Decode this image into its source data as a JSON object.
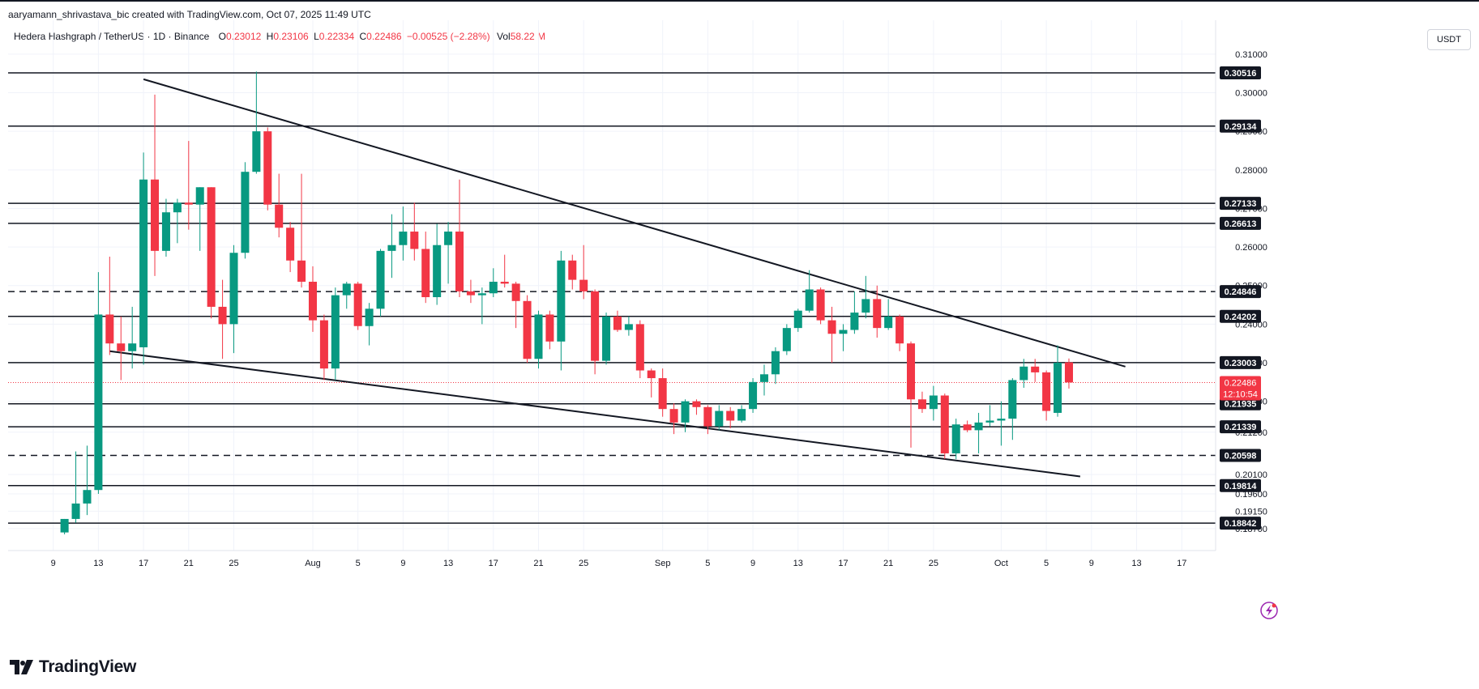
{
  "header": {
    "credit": "aaryamann_shrivastava_bic created with TradingView.com, Oct 07, 2025 11:49 UTC",
    "symbol": "Hedera Hashgraph / TetherUS · 1D · Binance",
    "o_label": "O",
    "o_value": "0.23012",
    "h_label": "H",
    "h_value": "0.23106",
    "l_label": "L",
    "l_value": "0.22334",
    "c_label": "C",
    "c_value": "0.22486",
    "change": "−0.00525 (−2.28%)",
    "vol_label": "Vol",
    "vol_value": "58.22 M"
  },
  "currency": "USDT",
  "brand": "TradingView",
  "colors": {
    "up": "#089981",
    "down": "#f23645",
    "line": "#131722",
    "grid": "#f0f3fa",
    "label_bg": "#131722",
    "price_line": "#f23645",
    "badge_bg": "#f23645"
  },
  "icons": {
    "logo": "tradingview-logo-icon",
    "alert": "lightning-bolt-icon"
  },
  "chart_data": {
    "type": "candlestick",
    "x_ticks": [
      {
        "date": "2025-07-09",
        "label": "9"
      },
      {
        "date": "2025-07-13",
        "label": "13"
      },
      {
        "date": "2025-07-17",
        "label": "17"
      },
      {
        "date": "2025-07-21",
        "label": "21"
      },
      {
        "date": "2025-07-25",
        "label": "25"
      },
      {
        "date": "2025-08-01",
        "label": "Aug"
      },
      {
        "date": "2025-08-05",
        "label": "5"
      },
      {
        "date": "2025-08-09",
        "label": "9"
      },
      {
        "date": "2025-08-13",
        "label": "13"
      },
      {
        "date": "2025-08-17",
        "label": "17"
      },
      {
        "date": "2025-08-21",
        "label": "21"
      },
      {
        "date": "2025-08-25",
        "label": "25"
      },
      {
        "date": "2025-09-01",
        "label": "Sep"
      },
      {
        "date": "2025-09-05",
        "label": "5"
      },
      {
        "date": "2025-09-09",
        "label": "9"
      },
      {
        "date": "2025-09-13",
        "label": "13"
      },
      {
        "date": "2025-09-17",
        "label": "17"
      },
      {
        "date": "2025-09-21",
        "label": "21"
      },
      {
        "date": "2025-09-25",
        "label": "25"
      },
      {
        "date": "2025-10-01",
        "label": "Oct"
      },
      {
        "date": "2025-10-05",
        "label": "5"
      },
      {
        "date": "2025-10-09",
        "label": "9"
      },
      {
        "date": "2025-10-13",
        "label": "13"
      },
      {
        "date": "2025-10-17",
        "label": "17"
      }
    ],
    "x_range": [
      "2025-07-05",
      "2025-10-20"
    ],
    "y_range": [
      0.1855,
      0.3125
    ],
    "y_ticks": [
      "0.31000",
      "0.30000",
      "0.29000",
      "0.28000",
      "0.27000",
      "0.26000",
      "0.25000",
      "0.24000",
      "0.23000",
      "0.22000",
      "0.21200",
      "0.20100",
      "0.19600",
      "0.19150",
      "0.18700"
    ],
    "candles": [
      {
        "date": "2025-07-10",
        "o": 0.186,
        "h": 0.1895,
        "l": 0.1855,
        "c": 0.1895
      },
      {
        "date": "2025-07-11",
        "o": 0.1895,
        "h": 0.207,
        "l": 0.1885,
        "c": 0.1935
      },
      {
        "date": "2025-07-12",
        "o": 0.1935,
        "h": 0.2085,
        "l": 0.1905,
        "c": 0.197
      },
      {
        "date": "2025-07-13",
        "o": 0.197,
        "h": 0.2535,
        "l": 0.196,
        "c": 0.2425
      },
      {
        "date": "2025-07-14",
        "o": 0.2425,
        "h": 0.2575,
        "l": 0.232,
        "c": 0.235
      },
      {
        "date": "2025-07-15",
        "o": 0.235,
        "h": 0.242,
        "l": 0.2255,
        "c": 0.233
      },
      {
        "date": "2025-07-16",
        "o": 0.233,
        "h": 0.2445,
        "l": 0.2285,
        "c": 0.235
      },
      {
        "date": "2025-07-17",
        "o": 0.234,
        "h": 0.2845,
        "l": 0.2295,
        "c": 0.2775
      },
      {
        "date": "2025-07-18",
        "o": 0.2775,
        "h": 0.2995,
        "l": 0.2525,
        "c": 0.259
      },
      {
        "date": "2025-07-19",
        "o": 0.259,
        "h": 0.2725,
        "l": 0.2575,
        "c": 0.269
      },
      {
        "date": "2025-07-20",
        "o": 0.269,
        "h": 0.2725,
        "l": 0.261,
        "c": 0.2715
      },
      {
        "date": "2025-07-21",
        "o": 0.2715,
        "h": 0.2875,
        "l": 0.2645,
        "c": 0.271
      },
      {
        "date": "2025-07-22",
        "o": 0.271,
        "h": 0.2755,
        "l": 0.259,
        "c": 0.2755
      },
      {
        "date": "2025-07-23",
        "o": 0.2755,
        "h": 0.2755,
        "l": 0.2415,
        "c": 0.2445
      },
      {
        "date": "2025-07-24",
        "o": 0.2445,
        "h": 0.2515,
        "l": 0.231,
        "c": 0.24
      },
      {
        "date": "2025-07-25",
        "o": 0.24,
        "h": 0.2605,
        "l": 0.2325,
        "c": 0.2585
      },
      {
        "date": "2025-07-26",
        "o": 0.2585,
        "h": 0.282,
        "l": 0.257,
        "c": 0.2795
      },
      {
        "date": "2025-07-27",
        "o": 0.2795,
        "h": 0.3055,
        "l": 0.279,
        "c": 0.29
      },
      {
        "date": "2025-07-28",
        "o": 0.29,
        "h": 0.291,
        "l": 0.2695,
        "c": 0.271
      },
      {
        "date": "2025-07-29",
        "o": 0.271,
        "h": 0.279,
        "l": 0.2625,
        "c": 0.265
      },
      {
        "date": "2025-07-30",
        "o": 0.265,
        "h": 0.2665,
        "l": 0.2535,
        "c": 0.2565
      },
      {
        "date": "2025-07-31",
        "o": 0.2565,
        "h": 0.279,
        "l": 0.2495,
        "c": 0.251
      },
      {
        "date": "2025-08-01",
        "o": 0.251,
        "h": 0.255,
        "l": 0.238,
        "c": 0.241
      },
      {
        "date": "2025-08-02",
        "o": 0.241,
        "h": 0.2425,
        "l": 0.2255,
        "c": 0.2285
      },
      {
        "date": "2025-08-03",
        "o": 0.2285,
        "h": 0.2495,
        "l": 0.2255,
        "c": 0.2475
      },
      {
        "date": "2025-08-04",
        "o": 0.2475,
        "h": 0.251,
        "l": 0.244,
        "c": 0.2505
      },
      {
        "date": "2025-08-05",
        "o": 0.2505,
        "h": 0.251,
        "l": 0.2385,
        "c": 0.2395
      },
      {
        "date": "2025-08-06",
        "o": 0.2395,
        "h": 0.2455,
        "l": 0.2345,
        "c": 0.244
      },
      {
        "date": "2025-08-07",
        "o": 0.244,
        "h": 0.2595,
        "l": 0.242,
        "c": 0.259
      },
      {
        "date": "2025-08-08",
        "o": 0.259,
        "h": 0.2685,
        "l": 0.252,
        "c": 0.2605
      },
      {
        "date": "2025-08-09",
        "o": 0.2605,
        "h": 0.2705,
        "l": 0.2565,
        "c": 0.264
      },
      {
        "date": "2025-08-10",
        "o": 0.264,
        "h": 0.2715,
        "l": 0.2565,
        "c": 0.2595
      },
      {
        "date": "2025-08-11",
        "o": 0.2595,
        "h": 0.264,
        "l": 0.2455,
        "c": 0.247
      },
      {
        "date": "2025-08-12",
        "o": 0.247,
        "h": 0.266,
        "l": 0.245,
        "c": 0.2605
      },
      {
        "date": "2025-08-13",
        "o": 0.2605,
        "h": 0.2665,
        "l": 0.2505,
        "c": 0.264
      },
      {
        "date": "2025-08-14",
        "o": 0.264,
        "h": 0.2775,
        "l": 0.247,
        "c": 0.2485
      },
      {
        "date": "2025-08-15",
        "o": 0.2485,
        "h": 0.2515,
        "l": 0.2455,
        "c": 0.2475
      },
      {
        "date": "2025-08-16",
        "o": 0.2475,
        "h": 0.2495,
        "l": 0.24,
        "c": 0.248
      },
      {
        "date": "2025-08-17",
        "o": 0.248,
        "h": 0.2545,
        "l": 0.247,
        "c": 0.251
      },
      {
        "date": "2025-08-18",
        "o": 0.251,
        "h": 0.258,
        "l": 0.2495,
        "c": 0.2505
      },
      {
        "date": "2025-08-19",
        "o": 0.2505,
        "h": 0.251,
        "l": 0.239,
        "c": 0.246
      },
      {
        "date": "2025-08-20",
        "o": 0.246,
        "h": 0.2475,
        "l": 0.23,
        "c": 0.231
      },
      {
        "date": "2025-08-21",
        "o": 0.231,
        "h": 0.2435,
        "l": 0.2285,
        "c": 0.2425
      },
      {
        "date": "2025-08-22",
        "o": 0.2425,
        "h": 0.2435,
        "l": 0.2335,
        "c": 0.2355
      },
      {
        "date": "2025-08-23",
        "o": 0.2355,
        "h": 0.259,
        "l": 0.228,
        "c": 0.2565
      },
      {
        "date": "2025-08-24",
        "o": 0.2565,
        "h": 0.258,
        "l": 0.249,
        "c": 0.2515
      },
      {
        "date": "2025-08-25",
        "o": 0.2515,
        "h": 0.2605,
        "l": 0.2465,
        "c": 0.2485
      },
      {
        "date": "2025-08-26",
        "o": 0.2485,
        "h": 0.249,
        "l": 0.227,
        "c": 0.2305
      },
      {
        "date": "2025-08-27",
        "o": 0.2305,
        "h": 0.243,
        "l": 0.2295,
        "c": 0.242
      },
      {
        "date": "2025-08-28",
        "o": 0.242,
        "h": 0.2435,
        "l": 0.238,
        "c": 0.2385
      },
      {
        "date": "2025-08-29",
        "o": 0.2385,
        "h": 0.242,
        "l": 0.237,
        "c": 0.24
      },
      {
        "date": "2025-08-30",
        "o": 0.24,
        "h": 0.241,
        "l": 0.226,
        "c": 0.228
      },
      {
        "date": "2025-08-31",
        "o": 0.228,
        "h": 0.2285,
        "l": 0.221,
        "c": 0.226
      },
      {
        "date": "2025-09-01",
        "o": 0.226,
        "h": 0.2285,
        "l": 0.216,
        "c": 0.218
      },
      {
        "date": "2025-09-02",
        "o": 0.218,
        "h": 0.2195,
        "l": 0.2115,
        "c": 0.2145
      },
      {
        "date": "2025-09-03",
        "o": 0.2145,
        "h": 0.2205,
        "l": 0.212,
        "c": 0.22
      },
      {
        "date": "2025-09-04",
        "o": 0.22,
        "h": 0.2205,
        "l": 0.2165,
        "c": 0.2185
      },
      {
        "date": "2025-09-05",
        "o": 0.2185,
        "h": 0.219,
        "l": 0.2115,
        "c": 0.2135
      },
      {
        "date": "2025-09-06",
        "o": 0.2135,
        "h": 0.219,
        "l": 0.2125,
        "c": 0.2175
      },
      {
        "date": "2025-09-07",
        "o": 0.2175,
        "h": 0.2185,
        "l": 0.213,
        "c": 0.215
      },
      {
        "date": "2025-09-08",
        "o": 0.215,
        "h": 0.219,
        "l": 0.2145,
        "c": 0.218
      },
      {
        "date": "2025-09-09",
        "o": 0.218,
        "h": 0.226,
        "l": 0.217,
        "c": 0.225
      },
      {
        "date": "2025-09-10",
        "o": 0.225,
        "h": 0.2295,
        "l": 0.2215,
        "c": 0.227
      },
      {
        "date": "2025-09-11",
        "o": 0.227,
        "h": 0.234,
        "l": 0.2245,
        "c": 0.233
      },
      {
        "date": "2025-09-12",
        "o": 0.233,
        "h": 0.24,
        "l": 0.232,
        "c": 0.239
      },
      {
        "date": "2025-09-13",
        "o": 0.239,
        "h": 0.244,
        "l": 0.238,
        "c": 0.2435
      },
      {
        "date": "2025-09-14",
        "o": 0.2435,
        "h": 0.254,
        "l": 0.243,
        "c": 0.249
      },
      {
        "date": "2025-09-15",
        "o": 0.249,
        "h": 0.2495,
        "l": 0.24,
        "c": 0.241
      },
      {
        "date": "2025-09-16",
        "o": 0.241,
        "h": 0.2445,
        "l": 0.23,
        "c": 0.2375
      },
      {
        "date": "2025-09-17",
        "o": 0.2375,
        "h": 0.24,
        "l": 0.233,
        "c": 0.2385
      },
      {
        "date": "2025-09-18",
        "o": 0.2385,
        "h": 0.2485,
        "l": 0.2375,
        "c": 0.243
      },
      {
        "date": "2025-09-19",
        "o": 0.243,
        "h": 0.2525,
        "l": 0.2415,
        "c": 0.2465
      },
      {
        "date": "2025-09-20",
        "o": 0.2465,
        "h": 0.25,
        "l": 0.2365,
        "c": 0.239
      },
      {
        "date": "2025-09-21",
        "o": 0.239,
        "h": 0.2465,
        "l": 0.2385,
        "c": 0.242
      },
      {
        "date": "2025-09-22",
        "o": 0.242,
        "h": 0.2425,
        "l": 0.233,
        "c": 0.235
      },
      {
        "date": "2025-09-23",
        "o": 0.235,
        "h": 0.2355,
        "l": 0.208,
        "c": 0.2205
      },
      {
        "date": "2025-09-24",
        "o": 0.2205,
        "h": 0.2225,
        "l": 0.217,
        "c": 0.218
      },
      {
        "date": "2025-09-25",
        "o": 0.218,
        "h": 0.224,
        "l": 0.215,
        "c": 0.2215
      },
      {
        "date": "2025-09-26",
        "o": 0.2215,
        "h": 0.222,
        "l": 0.205,
        "c": 0.2065
      },
      {
        "date": "2025-09-27",
        "o": 0.2065,
        "h": 0.2155,
        "l": 0.205,
        "c": 0.214
      },
      {
        "date": "2025-09-28",
        "o": 0.214,
        "h": 0.215,
        "l": 0.212,
        "c": 0.2125
      },
      {
        "date": "2025-09-29",
        "o": 0.2125,
        "h": 0.217,
        "l": 0.2065,
        "c": 0.2145
      },
      {
        "date": "2025-09-30",
        "o": 0.2145,
        "h": 0.219,
        "l": 0.2135,
        "c": 0.215
      },
      {
        "date": "2025-10-01",
        "o": 0.215,
        "h": 0.22,
        "l": 0.2085,
        "c": 0.2155
      },
      {
        "date": "2025-10-02",
        "o": 0.2155,
        "h": 0.226,
        "l": 0.21,
        "c": 0.2255
      },
      {
        "date": "2025-10-03",
        "o": 0.2255,
        "h": 0.231,
        "l": 0.2235,
        "c": 0.229
      },
      {
        "date": "2025-10-04",
        "o": 0.229,
        "h": 0.231,
        "l": 0.225,
        "c": 0.2275
      },
      {
        "date": "2025-10-05",
        "o": 0.2275,
        "h": 0.228,
        "l": 0.215,
        "c": 0.2175
      },
      {
        "date": "2025-10-06",
        "o": 0.217,
        "h": 0.2345,
        "l": 0.216,
        "c": 0.23
      },
      {
        "date": "2025-10-07",
        "o": 0.2301,
        "h": 0.2311,
        "l": 0.2233,
        "c": 0.2249
      }
    ],
    "horizontal_levels": [
      {
        "value": 0.30516,
        "label": "0.30516",
        "style": "solid"
      },
      {
        "value": 0.29134,
        "label": "0.29134",
        "style": "solid"
      },
      {
        "value": 0.27133,
        "label": "0.27133",
        "style": "solid"
      },
      {
        "value": 0.26613,
        "label": "0.26613",
        "style": "solid"
      },
      {
        "value": 0.24846,
        "label": "0.24846",
        "style": "dashed"
      },
      {
        "value": 0.24202,
        "label": "0.24202",
        "style": "solid"
      },
      {
        "value": 0.23003,
        "label": "0.23003",
        "style": "solid"
      },
      {
        "value": 0.21935,
        "label": "0.21935",
        "style": "solid"
      },
      {
        "value": 0.21339,
        "label": "0.21339",
        "style": "solid"
      },
      {
        "value": 0.20598,
        "label": "0.20598",
        "style": "dashed"
      },
      {
        "value": 0.19814,
        "label": "0.19814",
        "style": "solid"
      },
      {
        "value": 0.18842,
        "label": "0.18842",
        "style": "solid"
      }
    ],
    "trendlines": [
      {
        "from": {
          "date": "2025-07-17",
          "value": 0.3035
        },
        "to": {
          "date": "2025-10-12",
          "value": 0.229
        }
      },
      {
        "from": {
          "date": "2025-07-14",
          "value": 0.233
        },
        "to": {
          "date": "2025-10-08",
          "value": 0.2005
        }
      }
    ],
    "last_price": {
      "value": 0.22486,
      "label": "0.22486",
      "countdown": "12:10:54"
    },
    "grid": true
  }
}
